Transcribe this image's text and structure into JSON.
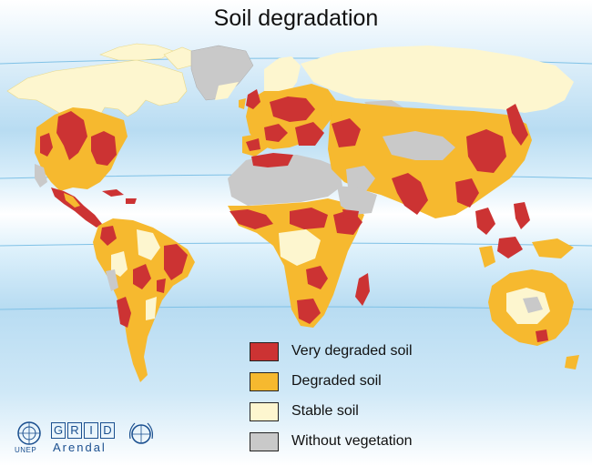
{
  "title": "Soil degradation",
  "legend": [
    {
      "label": "Very degraded soil",
      "color": "#cc3333"
    },
    {
      "label": "Degraded soil",
      "color": "#f6b92f"
    },
    {
      "label": "Stable soil",
      "color": "#fdf6cf"
    },
    {
      "label": "Without vegetation",
      "color": "#c9c9c9"
    }
  ],
  "logos": {
    "unep": "UNEP",
    "grid": [
      "G",
      "R",
      "I",
      "D"
    ],
    "arendal": "Arendal"
  },
  "colors": {
    "ocean_light": "#ffffff",
    "ocean_blue": "#b8dcf2",
    "parallel_line": "#7fc1e6"
  }
}
